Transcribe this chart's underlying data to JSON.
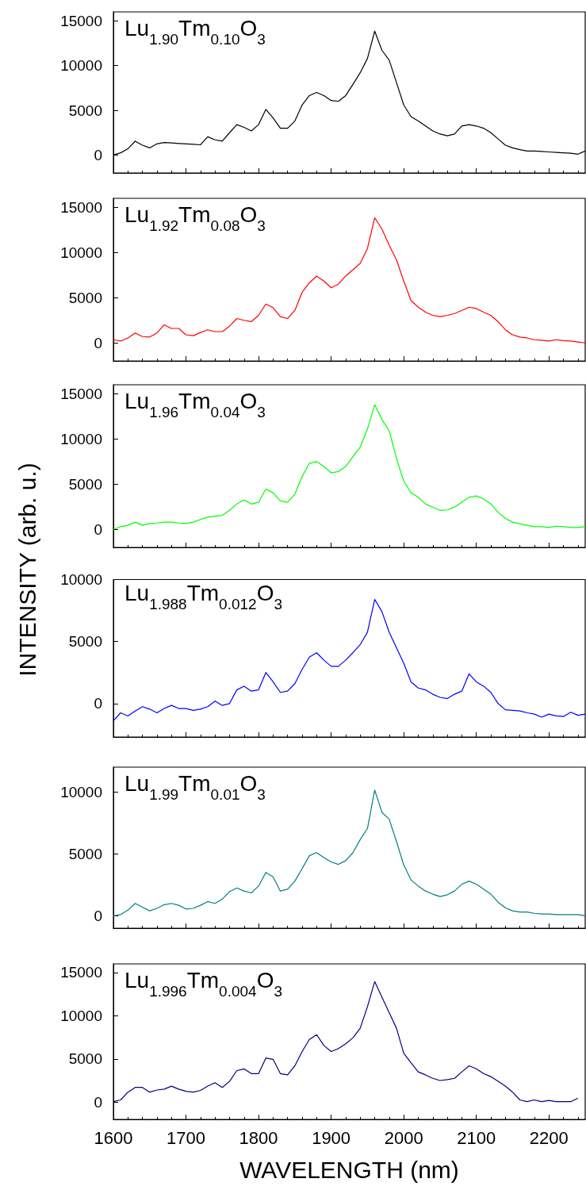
{
  "chart_data": [
    {
      "type": "line",
      "annotations": [
        "Lu$_{1.90}$Tm$_{0.10}$O$_{3}$"
      ],
      "xlim": [
        1600,
        2250
      ],
      "xticks": [
        1600,
        1700,
        1800,
        1900,
        2000,
        2100,
        2200
      ],
      "ylim": [
        -2000,
        16000
      ],
      "yticks": [
        0,
        5000,
        10000,
        15000
      ],
      "tick_labels": "y",
      "grid": false,
      "marker": "none",
      "x": [
        1600,
        1610,
        1620,
        1630,
        1640,
        1650,
        1660,
        1670,
        1680,
        1690,
        1700,
        1710,
        1720,
        1730,
        1740,
        1750,
        1760,
        1770,
        1780,
        1790,
        1800,
        1810,
        1820,
        1830,
        1840,
        1850,
        1860,
        1870,
        1880,
        1890,
        1900,
        1910,
        1920,
        1930,
        1940,
        1950,
        1960,
        1970,
        1980,
        1990,
        2000,
        2010,
        2020,
        2030,
        2040,
        2050,
        2060,
        2070,
        2080,
        2090,
        2100,
        2110,
        2120,
        2130,
        2140,
        2150,
        2160,
        2170,
        2180,
        2190,
        2200,
        2210,
        2220,
        2230,
        2240,
        2250
      ],
      "series": [
        {
          "color": "#000000",
          "values": [
            0,
            250,
            700,
            1550,
            1100,
            800,
            1250,
            1400,
            1350,
            1300,
            1250,
            1200,
            1150,
            2050,
            1700,
            1550,
            2500,
            3400,
            3100,
            2700,
            3400,
            5100,
            4150,
            3000,
            3000,
            3800,
            5600,
            6650,
            7000,
            6650,
            6100,
            6000,
            6650,
            7900,
            9200,
            10800,
            13850,
            11700,
            10600,
            8100,
            5600,
            4300,
            3800,
            3250,
            2700,
            2350,
            2150,
            2350,
            3250,
            3400,
            3250,
            3000,
            2500,
            1800,
            1100,
            800,
            600,
            450,
            450,
            400,
            350,
            300,
            250,
            200,
            100,
            450
          ]
        }
      ]
    },
    {
      "type": "line",
      "annotations": [
        "Lu$_{1.92}$Tm$_{0.08}$O$_{3}$"
      ],
      "xlim": [
        1600,
        2250
      ],
      "xticks": [
        1600,
        1700,
        1800,
        1900,
        2000,
        2100,
        2200
      ],
      "ylim": [
        -2000,
        16000
      ],
      "yticks": [
        0,
        5000,
        10000,
        15000
      ],
      "tick_labels": "y",
      "grid": false,
      "marker": "none",
      "x": [
        1600,
        1610,
        1620,
        1630,
        1640,
        1650,
        1660,
        1670,
        1680,
        1690,
        1700,
        1710,
        1720,
        1730,
        1740,
        1750,
        1760,
        1770,
        1780,
        1790,
        1800,
        1810,
        1820,
        1830,
        1840,
        1850,
        1860,
        1870,
        1880,
        1890,
        1900,
        1910,
        1920,
        1930,
        1940,
        1950,
        1960,
        1970,
        1980,
        1990,
        2000,
        2010,
        2020,
        2030,
        2040,
        2050,
        2060,
        2070,
        2080,
        2090,
        2100,
        2110,
        2120,
        2130,
        2140,
        2150,
        2160,
        2170,
        2180,
        2190,
        2200,
        2210,
        2220,
        2230,
        2240,
        2250
      ],
      "series": [
        {
          "color": "#ff0000",
          "values": [
            350,
            200,
            550,
            1100,
            700,
            650,
            1100,
            2000,
            1600,
            1600,
            900,
            800,
            1150,
            1450,
            1250,
            1250,
            1850,
            2700,
            2500,
            2350,
            3050,
            4300,
            3900,
            2900,
            2700,
            3600,
            5600,
            6650,
            7400,
            6850,
            6100,
            6500,
            7400,
            8100,
            8800,
            10450,
            13850,
            12600,
            10800,
            9200,
            6850,
            4700,
            3950,
            3400,
            3050,
            2900,
            3050,
            3250,
            3600,
            3950,
            3800,
            3400,
            3050,
            2350,
            1450,
            900,
            650,
            550,
            350,
            300,
            200,
            350,
            250,
            200,
            100,
            0
          ]
        }
      ]
    },
    {
      "type": "line",
      "annotations": [
        "Lu$_{1.96}$Tm$_{0.04}$O$_{3}$"
      ],
      "xlim": [
        1600,
        2250
      ],
      "xticks": [
        1600,
        1700,
        1800,
        1900,
        2000,
        2100,
        2200
      ],
      "ylim": [
        -2000,
        16000
      ],
      "yticks": [
        0,
        5000,
        10000,
        15000
      ],
      "tick_labels": "y",
      "grid": false,
      "marker": "none",
      "x": [
        1600,
        1610,
        1620,
        1630,
        1640,
        1650,
        1660,
        1670,
        1680,
        1690,
        1700,
        1710,
        1720,
        1730,
        1740,
        1750,
        1760,
        1770,
        1780,
        1790,
        1800,
        1810,
        1820,
        1830,
        1840,
        1850,
        1860,
        1870,
        1880,
        1890,
        1900,
        1910,
        1920,
        1930,
        1940,
        1950,
        1960,
        1970,
        1980,
        1990,
        2000,
        2010,
        2020,
        2030,
        2040,
        2050,
        2060,
        2070,
        2080,
        2090,
        2100,
        2110,
        2120,
        2130,
        2140,
        2150,
        2160,
        2170,
        2180,
        2190,
        2200,
        2210,
        2220,
        2230,
        2240,
        2250
      ],
      "series": [
        {
          "color": "#00ff00",
          "values": [
            0,
            300,
            450,
            800,
            450,
            650,
            700,
            800,
            800,
            700,
            650,
            800,
            1100,
            1350,
            1450,
            1550,
            2100,
            2800,
            3250,
            2800,
            3000,
            4450,
            4050,
            3150,
            3000,
            3900,
            5850,
            7300,
            7500,
            6950,
            6250,
            6400,
            6950,
            8050,
            9100,
            11100,
            13800,
            12150,
            10900,
            7850,
            5350,
            4050,
            3550,
            2800,
            2450,
            2100,
            2150,
            2450,
            3000,
            3550,
            3700,
            3350,
            2800,
            1900,
            1200,
            800,
            600,
            450,
            300,
            300,
            200,
            350,
            300,
            200,
            200,
            300
          ]
        }
      ]
    },
    {
      "type": "line",
      "annotations": [
        "Lu$_{1.988}$Tm$_{0.012}$O$_{3}$"
      ],
      "ylabel": "INTENSITY (arb. u.)",
      "xlim": [
        1600,
        2250
      ],
      "xticks": [
        1600,
        1700,
        1800,
        1900,
        2000,
        2100,
        2200
      ],
      "ylim": [
        -2700,
        10000
      ],
      "yticks": [
        0,
        5000,
        10000
      ],
      "tick_labels": "y",
      "grid": false,
      "marker": "none",
      "x": [
        1600,
        1610,
        1620,
        1630,
        1640,
        1650,
        1660,
        1670,
        1680,
        1690,
        1700,
        1710,
        1720,
        1730,
        1740,
        1750,
        1760,
        1770,
        1780,
        1790,
        1800,
        1810,
        1820,
        1830,
        1840,
        1850,
        1860,
        1870,
        1880,
        1890,
        1900,
        1910,
        1920,
        1930,
        1940,
        1950,
        1960,
        1970,
        1980,
        1990,
        2000,
        2010,
        2020,
        2030,
        2040,
        2050,
        2060,
        2070,
        2080,
        2090,
        2100,
        2110,
        2120,
        2130,
        2140,
        2150,
        2160,
        2170,
        2180,
        2190,
        2200,
        2210,
        2220,
        2230,
        2240,
        2250
      ],
      "series": [
        {
          "color": "#0000ff",
          "values": [
            -1400,
            -750,
            -1000,
            -600,
            -250,
            -450,
            -750,
            -400,
            -150,
            -400,
            -400,
            -550,
            -450,
            -250,
            200,
            -150,
            0,
            1100,
            1400,
            1000,
            1100,
            2500,
            1750,
            900,
            1000,
            1600,
            2750,
            3750,
            4100,
            3500,
            3000,
            3000,
            3500,
            4100,
            4750,
            5750,
            8400,
            7400,
            5750,
            4500,
            3250,
            1750,
            1250,
            1100,
            750,
            500,
            400,
            750,
            1000,
            2400,
            1750,
            1400,
            900,
            0,
            -500,
            -550,
            -600,
            -750,
            -850,
            -1100,
            -850,
            -1000,
            -1050,
            -700,
            -950,
            -850
          ]
        }
      ]
    },
    {
      "type": "line",
      "annotations": [
        "Lu$_{1.99}$Tm$_{0.01}$O$_{3}$"
      ],
      "xlim": [
        1600,
        2250
      ],
      "xticks": [
        1600,
        1700,
        1800,
        1900,
        2000,
        2100,
        2200
      ],
      "ylim": [
        -1000,
        12000
      ],
      "yticks": [
        0,
        5000,
        10000
      ],
      "tick_labels": "y",
      "grid": false,
      "marker": "none",
      "x": [
        1600,
        1610,
        1620,
        1630,
        1640,
        1650,
        1660,
        1670,
        1680,
        1690,
        1700,
        1710,
        1720,
        1730,
        1740,
        1750,
        1760,
        1770,
        1780,
        1790,
        1800,
        1810,
        1820,
        1830,
        1840,
        1850,
        1860,
        1870,
        1880,
        1890,
        1900,
        1910,
        1920,
        1930,
        1940,
        1950,
        1960,
        1970,
        1980,
        1990,
        2000,
        2010,
        2020,
        2030,
        2040,
        2050,
        2060,
        2070,
        2080,
        2090,
        2100,
        2110,
        2120,
        2130,
        2140,
        2150,
        2160,
        2170,
        2180,
        2190,
        2200,
        2210,
        2220,
        2230,
        2240,
        2250
      ],
      "series": [
        {
          "color": "#008080",
          "values": [
            0,
            100,
            450,
            1000,
            700,
            400,
            600,
            900,
            1000,
            850,
            550,
            600,
            850,
            1150,
            1000,
            1350,
            1950,
            2250,
            2000,
            1850,
            2400,
            3500,
            3150,
            2000,
            2150,
            2800,
            3800,
            4850,
            5100,
            4700,
            4350,
            4150,
            4450,
            5100,
            6150,
            7050,
            10150,
            8350,
            7800,
            6000,
            4100,
            2900,
            2400,
            2000,
            1750,
            1550,
            1700,
            2000,
            2550,
            2800,
            2550,
            2150,
            1750,
            1100,
            650,
            400,
            300,
            300,
            200,
            150,
            150,
            100,
            100,
            100,
            100,
            0
          ]
        }
      ]
    },
    {
      "type": "line",
      "annotations": [
        "Lu$_{1.996}$Tm$_{0.004}$O$_{3}$"
      ],
      "xlabel": "WAVELENGTH (nm)",
      "xlim": [
        1600,
        2250
      ],
      "xticks": [
        1600,
        1700,
        1800,
        1900,
        2000,
        2100,
        2200
      ],
      "ylim": [
        -2000,
        16000
      ],
      "yticks": [
        0,
        5000,
        10000,
        15000
      ],
      "grid": false,
      "marker": "none",
      "x": [
        1600,
        1610,
        1620,
        1630,
        1640,
        1650,
        1660,
        1670,
        1680,
        1690,
        1700,
        1710,
        1720,
        1730,
        1740,
        1750,
        1760,
        1770,
        1780,
        1790,
        1800,
        1810,
        1820,
        1830,
        1840,
        1850,
        1860,
        1870,
        1880,
        1890,
        1900,
        1910,
        1920,
        1930,
        1940,
        1950,
        1960,
        1970,
        1980,
        1990,
        2000,
        2010,
        2020,
        2030,
        2040,
        2050,
        2060,
        2070,
        2080,
        2090,
        2100,
        2110,
        2120,
        2130,
        2140,
        2150,
        2160,
        2170,
        2180,
        2190,
        2200,
        2210,
        2220,
        2230,
        2240
      ],
      "series": [
        {
          "color": "#000080",
          "values": [
            50,
            250,
            1150,
            1700,
            1700,
            1150,
            1400,
            1500,
            1850,
            1500,
            1250,
            1150,
            1350,
            1850,
            2250,
            1700,
            2400,
            3650,
            3850,
            3300,
            3300,
            5100,
            4950,
            3300,
            3150,
            4200,
            5850,
            7250,
            7800,
            6550,
            5850,
            6200,
            6750,
            7450,
            8550,
            11050,
            13950,
            12150,
            10350,
            8550,
            5650,
            4550,
            3500,
            3150,
            2750,
            2500,
            2600,
            2750,
            3500,
            4200,
            3850,
            3300,
            2950,
            2400,
            1850,
            1150,
            250,
            50,
            250,
            50,
            200,
            50,
            50,
            50,
            450
          ]
        }
      ]
    }
  ]
}
